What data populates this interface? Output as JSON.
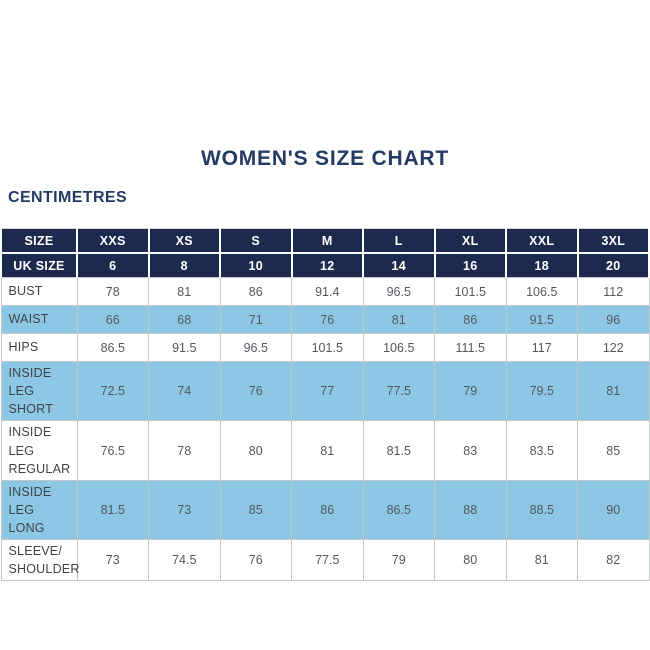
{
  "page": {
    "title": "WOMEN'S SIZE CHART",
    "unit_label": "CENTIMETRES"
  },
  "colors": {
    "header_navy": "#1e2a4d",
    "title_navy": "#243a63",
    "row_light_blue": "#8cc7e5",
    "row_white": "#ffffff",
    "cell_text": "#54585d",
    "label_text": "#3f4347",
    "grid_border": "#c4c7c9"
  },
  "chart_data": {
    "type": "table",
    "title": "WOMEN'S SIZE CHART",
    "unit": "CENTIMETRES",
    "header": [
      "SIZE",
      "XXS",
      "XS",
      "S",
      "M",
      "L",
      "XL",
      "XXL",
      "3XL"
    ],
    "uk_size_row": [
      "UK SIZE",
      "6",
      "8",
      "10",
      "12",
      "14",
      "16",
      "18",
      "20"
    ],
    "rows": [
      {
        "label": "BUST",
        "values": [
          "78",
          "81",
          "86",
          "91.4",
          "96.5",
          "101.5",
          "106.5",
          "112"
        ]
      },
      {
        "label": "WAIST",
        "values": [
          "66",
          "68",
          "71",
          "76",
          "81",
          "86",
          "91.5",
          "96"
        ]
      },
      {
        "label": "HIPS",
        "values": [
          "86.5",
          "91.5",
          "96.5",
          "101.5",
          "106.5",
          "111.5",
          "117",
          "122"
        ]
      },
      {
        "label": "INSIDE LEG\nSHORT",
        "values": [
          "72.5",
          "74",
          "76",
          "77",
          "77.5",
          "79",
          "79.5",
          "81"
        ]
      },
      {
        "label": "INSIDE LEG\nREGULAR",
        "values": [
          "76.5",
          "78",
          "80",
          "81",
          "81.5",
          "83",
          "83.5",
          "85"
        ]
      },
      {
        "label": "INSIDE LEG\nLONG",
        "values": [
          "81.5",
          "73",
          "85",
          "86",
          "86.5",
          "88",
          "88.5",
          "90"
        ]
      },
      {
        "label": "SLEEVE/\nSHOULDER",
        "values": [
          "73",
          "74.5",
          "76",
          "77.5",
          "79",
          "80",
          "81",
          "82"
        ]
      }
    ],
    "layout": {
      "alternating_rows": "white/light-blue",
      "header_rows": 2,
      "grid": true
    }
  }
}
